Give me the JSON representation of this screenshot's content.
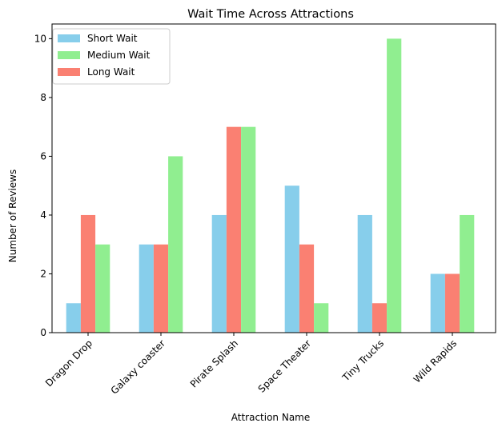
{
  "chart_data": {
    "type": "bar",
    "title": "Wait Time Across Attractions",
    "xlabel": "Attraction Name",
    "ylabel": "Number of Reviews",
    "categories": [
      "Dragon Drop",
      "Galaxy coaster",
      "Pirate Splash",
      "Space Theater",
      "Tiny Trucks",
      "Wild Rapids"
    ],
    "series": [
      {
        "name": "Short Wait",
        "color": "#87CEEB",
        "values": [
          1,
          3,
          4,
          5,
          4,
          2
        ]
      },
      {
        "name": "Long Wait",
        "color": "#FA8072",
        "values": [
          4,
          3,
          7,
          3,
          1,
          2
        ]
      },
      {
        "name": "Medium Wait",
        "color": "#90EE90",
        "values": [
          3,
          6,
          7,
          1,
          10,
          4
        ]
      }
    ],
    "legend_order": [
      "Short Wait",
      "Medium Wait",
      "Long Wait"
    ],
    "legend_position": "top-left",
    "ylim": [
      0,
      10.5
    ],
    "yticks": [
      0,
      2,
      4,
      6,
      8,
      10
    ],
    "grid": false
  }
}
